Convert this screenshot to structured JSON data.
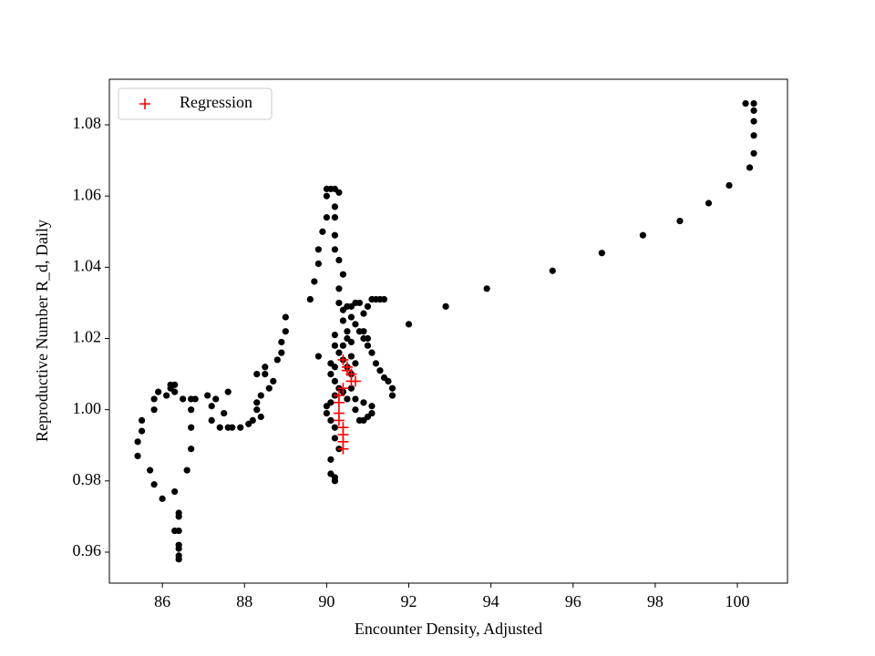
{
  "chart_data": {
    "type": "scatter",
    "xlabel": "Encounter Density, Adjusted",
    "ylabel": "Reproductive Number R_d, Daily",
    "xlim": [
      84.71,
      101.22
    ],
    "ylim": [
      0.9513,
      1.0928
    ],
    "xticks": [
      86,
      88,
      90,
      92,
      94,
      96,
      98,
      100
    ],
    "yticks": [
      0.96,
      0.98,
      {
        "value": 1,
        "label": "1.00"
      },
      1.02,
      1.04,
      1.06,
      1.08
    ],
    "legend": "upper left",
    "series": [
      {
        "color": "#000000",
        "marker": "dot",
        "x": [
          100.2,
          100.4,
          100.4,
          100.4,
          100.4,
          100.4,
          100.3,
          99.8,
          99.3,
          98.6,
          97.7,
          96.7,
          95.5,
          93.9,
          92.9,
          92.0,
          85.4,
          85.4,
          85.5,
          85.5,
          85.7,
          85.8,
          86.0,
          86.3,
          86.3,
          86.4,
          86.4,
          86.4,
          86.4,
          86.4,
          86.4,
          86.4,
          85.8,
          85.8,
          85.9,
          86.1,
          86.2,
          86.2,
          86.3,
          86.3,
          86.5,
          86.6,
          86.7,
          86.7,
          86.7,
          86.7,
          86.8,
          87.1,
          87.2,
          87.2,
          87.3,
          87.4,
          87.5,
          87.6,
          87.6,
          87.7,
          87.9,
          88.1,
          88.2,
          88.3,
          88.3,
          88.3,
          88.4,
          88.4,
          88.5,
          88.5,
          88.6,
          88.7,
          88.8,
          88.9,
          88.9,
          89.0,
          89.0,
          89.6,
          89.7,
          89.8,
          89.8,
          89.9,
          90.0,
          90.0,
          90.0,
          90.1,
          90.2,
          90.3,
          90.2,
          90.2,
          90.2,
          90.2,
          90.3,
          90.4,
          90.3,
          90.3,
          89.8,
          90.4,
          90.5,
          90.6,
          90.7,
          90.8,
          90.6,
          90.7,
          90.8,
          90.9,
          91.0,
          91.1,
          91.2,
          91.3,
          91.4,
          91.5,
          91.6,
          91.6,
          90.9,
          91.0,
          91.1,
          91.2,
          91.3,
          91.4,
          90.9,
          91.0,
          90.4,
          90.5,
          90.6,
          90.2,
          90.2,
          90.3,
          90.4,
          90.5,
          90.6,
          90.7,
          90.6,
          90.1,
          90.1,
          90.2,
          90.3,
          90.2,
          90.1,
          90.0,
          90.0,
          90.1,
          90.2,
          90.2,
          90.3,
          90.1,
          90.1,
          90.2,
          90.2,
          90.5,
          90.4,
          90.5,
          90.6,
          90.7,
          90.7,
          90.8,
          90.9,
          91.0,
          91.1,
          91.1,
          90.9,
          90.4,
          90.2
        ],
        "values": [
          1.086,
          1.086,
          1.084,
          1.081,
          1.077,
          1.072,
          1.068,
          1.063,
          1.058,
          1.053,
          1.049,
          1.044,
          1.039,
          1.034,
          1.029,
          1.024,
          0.991,
          0.987,
          0.994,
          0.997,
          0.983,
          0.979,
          0.975,
          0.977,
          0.966,
          0.971,
          0.97,
          0.966,
          0.962,
          0.961,
          0.959,
          0.958,
          1.0,
          1.003,
          1.005,
          1.004,
          1.006,
          1.007,
          1.007,
          1.005,
          1.003,
          0.983,
          0.989,
          0.995,
          1.0,
          1.003,
          1.003,
          1.004,
          1.001,
          0.997,
          1.003,
          0.995,
          0.999,
          1.005,
          0.995,
          0.995,
          0.995,
          0.996,
          0.997,
          1.01,
          1.002,
          1.0,
          0.998,
          1.004,
          1.012,
          1.01,
          1.006,
          1.008,
          1.014,
          1.016,
          1.019,
          1.022,
          1.026,
          1.031,
          1.036,
          1.041,
          1.045,
          1.05,
          1.054,
          1.06,
          1.062,
          1.062,
          1.062,
          1.061,
          1.057,
          1.054,
          1.049,
          1.045,
          1.042,
          1.038,
          1.034,
          1.03,
          1.015,
          1.028,
          1.029,
          1.029,
          1.03,
          1.03,
          1.026,
          1.024,
          1.022,
          1.02,
          1.018,
          1.016,
          1.013,
          1.011,
          1.009,
          1.008,
          1.006,
          1.004,
          1.027,
          1.029,
          1.031,
          1.031,
          1.031,
          1.031,
          1.022,
          1.02,
          1.025,
          1.022,
          1.019,
          1.021,
          1.018,
          1.016,
          1.014,
          1.012,
          1.015,
          1.013,
          1.01,
          1.013,
          1.01,
          1.008,
          1.006,
          1.004,
          1.002,
          1.001,
          0.999,
          0.997,
          0.995,
          0.992,
          0.989,
          0.986,
          0.982,
          0.981,
          0.98,
          1.02,
          1.005,
          1.003,
          1.006,
          1.003,
          1.0,
          0.997,
          0.997,
          0.998,
          0.999,
          1.001,
          1.002,
          1.018,
          1.012
        ]
      },
      {
        "name": "Regression",
        "color": "#ff0000",
        "marker": "plus",
        "x": [
          90.4,
          90.5,
          90.6,
          90.6,
          90.4,
          90.3,
          90.3,
          90.3,
          90.3,
          90.4,
          90.4,
          90.4,
          90.4,
          90.5,
          90.7
        ],
        "values": [
          1.014,
          1.012,
          1.01,
          1.008,
          1.006,
          1.004,
          1.002,
          0.999,
          0.997,
          0.995,
          0.993,
          0.991,
          0.989,
          1.011,
          1.008
        ]
      }
    ]
  }
}
